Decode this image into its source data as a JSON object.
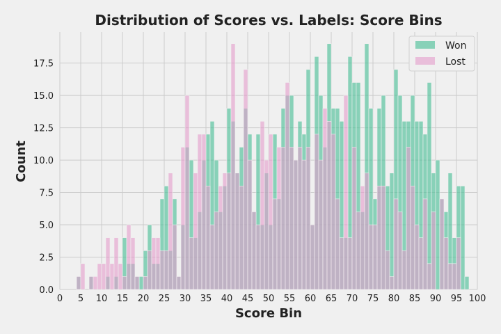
{
  "chart_data": {
    "type": "bar",
    "title": "Distribution of Scores vs. Labels: Score Bins",
    "xlabel": "Score Bin",
    "ylabel": "Count",
    "xlim": [
      0,
      100
    ],
    "ylim": [
      0,
      19.9
    ],
    "xticks": [
      0,
      5,
      10,
      15,
      20,
      25,
      30,
      35,
      40,
      45,
      50,
      55,
      60,
      65,
      70,
      75,
      80,
      85,
      90,
      95,
      100
    ],
    "xtick_labels": [
      "0",
      "5",
      "10",
      "15",
      "20",
      "25",
      "30",
      "35",
      "40",
      "45",
      "50",
      "55",
      "60",
      "65",
      "70",
      "75",
      "80",
      "85",
      "90",
      "95",
      "100"
    ],
    "yticks": [
      0,
      2.5,
      5,
      7.5,
      10,
      12.5,
      15,
      17.5
    ],
    "ytick_labels": [
      "0.0",
      "2.5",
      "5.0",
      "7.5",
      "10.0",
      "12.5",
      "15.0",
      "17.5"
    ],
    "grid": true,
    "legend_position": "top-right",
    "bin_start": 0,
    "bin_width": 1,
    "series": [
      {
        "name": "Won",
        "color": "#50c09a",
        "opacity": 0.65,
        "values": [
          0,
          0,
          0,
          0,
          1,
          0,
          0,
          1,
          0,
          0,
          0,
          1,
          0,
          1,
          0,
          4,
          2,
          2,
          1,
          1,
          3,
          5,
          2,
          2,
          7,
          8,
          3,
          7,
          1,
          5,
          11,
          10,
          4,
          6,
          10,
          12,
          13,
          10,
          6,
          8,
          14,
          13,
          9,
          11,
          14,
          12,
          6,
          12,
          5,
          9,
          5,
          12,
          7,
          14,
          15,
          15,
          10,
          13,
          12,
          17,
          5,
          18,
          15,
          11,
          19,
          14,
          14,
          13,
          4,
          18,
          16,
          16,
          6,
          19,
          14,
          7,
          14,
          15,
          8,
          9,
          17,
          15,
          13,
          13,
          15,
          13,
          13,
          12,
          16,
          9,
          10,
          7,
          6,
          9,
          4,
          8,
          8,
          1
        ]
      },
      {
        "name": "Lost",
        "color": "#e49ccc",
        "opacity": 0.6,
        "values": [
          0,
          0,
          0,
          0,
          1,
          2,
          0,
          1,
          1,
          2,
          2,
          4,
          2,
          4,
          2,
          1,
          5,
          4,
          1,
          0,
          1,
          3,
          4,
          4,
          3,
          3,
          9,
          5,
          1,
          11,
          15,
          4,
          9,
          12,
          12,
          8,
          5,
          6,
          8,
          9,
          9,
          19,
          9,
          8,
          17,
          10,
          6,
          5,
          13,
          10,
          12,
          7,
          11,
          11,
          16,
          11,
          10,
          11,
          10,
          11,
          5,
          12,
          10,
          14,
          13,
          12,
          7,
          4,
          15,
          4,
          11,
          6,
          8,
          9,
          5,
          5,
          8,
          8,
          3,
          1,
          7,
          6,
          3,
          11,
          8,
          5,
          4,
          7,
          2,
          6,
          0,
          7,
          4,
          2,
          2,
          4,
          0,
          0
        ]
      }
    ]
  }
}
